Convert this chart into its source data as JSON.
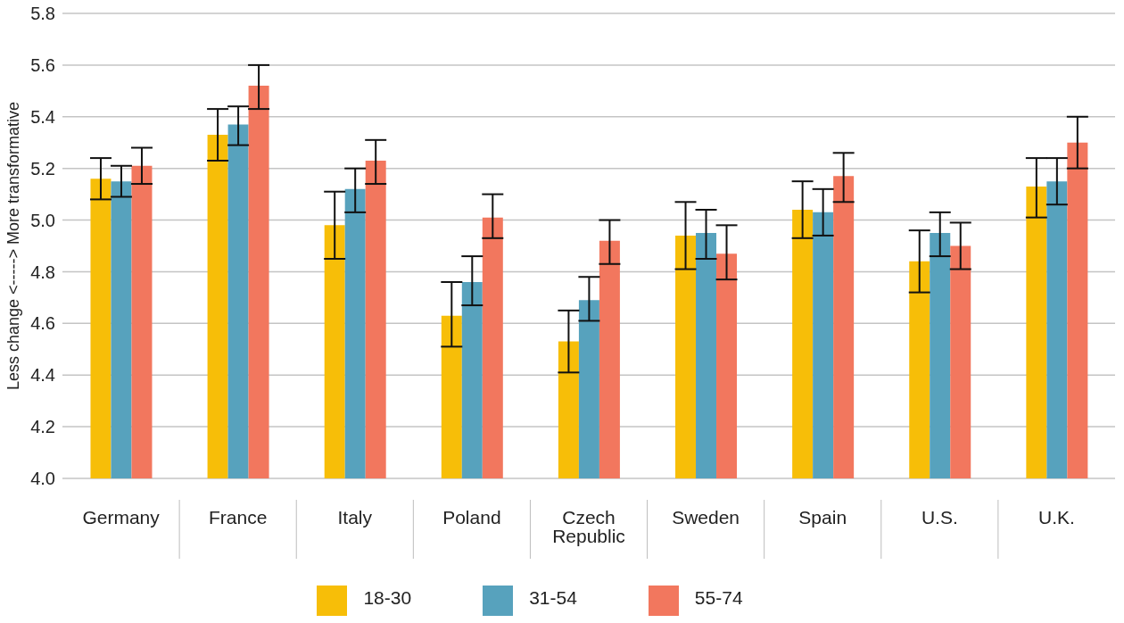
{
  "chart_data": {
    "type": "bar",
    "ylabel": "Less change <-----> More transformative",
    "categories": [
      "Germany",
      "France",
      "Italy",
      "Poland",
      "Czech Republic",
      "Sweden",
      "Spain",
      "U.S.",
      "U.K."
    ],
    "series": [
      {
        "name": "18-30",
        "color": "#f7be08",
        "values": [
          5.16,
          5.33,
          4.98,
          4.63,
          4.53,
          4.94,
          5.04,
          4.84,
          5.13
        ],
        "errors": [
          [
            5.08,
            5.24
          ],
          [
            5.23,
            5.43
          ],
          [
            4.85,
            5.11
          ],
          [
            4.51,
            4.76
          ],
          [
            4.41,
            4.65
          ],
          [
            4.81,
            5.07
          ],
          [
            4.93,
            5.15
          ],
          [
            4.72,
            4.96
          ],
          [
            5.01,
            5.24
          ]
        ]
      },
      {
        "name": "31-54",
        "color": "#57a2bd",
        "values": [
          5.15,
          5.37,
          5.12,
          4.76,
          4.69,
          4.95,
          5.03,
          4.95,
          5.15
        ],
        "errors": [
          [
            5.09,
            5.21
          ],
          [
            5.29,
            5.44
          ],
          [
            5.03,
            5.2
          ],
          [
            4.67,
            4.86
          ],
          [
            4.61,
            4.78
          ],
          [
            4.85,
            5.04
          ],
          [
            4.94,
            5.12
          ],
          [
            4.86,
            5.03
          ],
          [
            5.06,
            5.24
          ]
        ]
      },
      {
        "name": "55-74",
        "color": "#f2775e",
        "values": [
          5.21,
          5.52,
          5.23,
          5.01,
          4.92,
          4.87,
          5.17,
          4.9,
          5.3
        ],
        "errors": [
          [
            5.14,
            5.28
          ],
          [
            5.43,
            5.6
          ],
          [
            5.14,
            5.31
          ],
          [
            4.93,
            5.1
          ],
          [
            4.83,
            5.0
          ],
          [
            4.77,
            4.98
          ],
          [
            5.07,
            5.26
          ],
          [
            4.81,
            4.99
          ],
          [
            5.2,
            5.4
          ]
        ]
      }
    ],
    "ylim": [
      4.0,
      5.8
    ],
    "yticks": [
      {
        "value": 4,
        "label": "4.0"
      },
      4.2,
      4.4,
      4.6,
      4.8,
      {
        "value": 5,
        "label": "5.0"
      },
      5.2,
      5.4,
      5.6,
      5.8
    ],
    "grid": "y",
    "legend": "bottom"
  }
}
